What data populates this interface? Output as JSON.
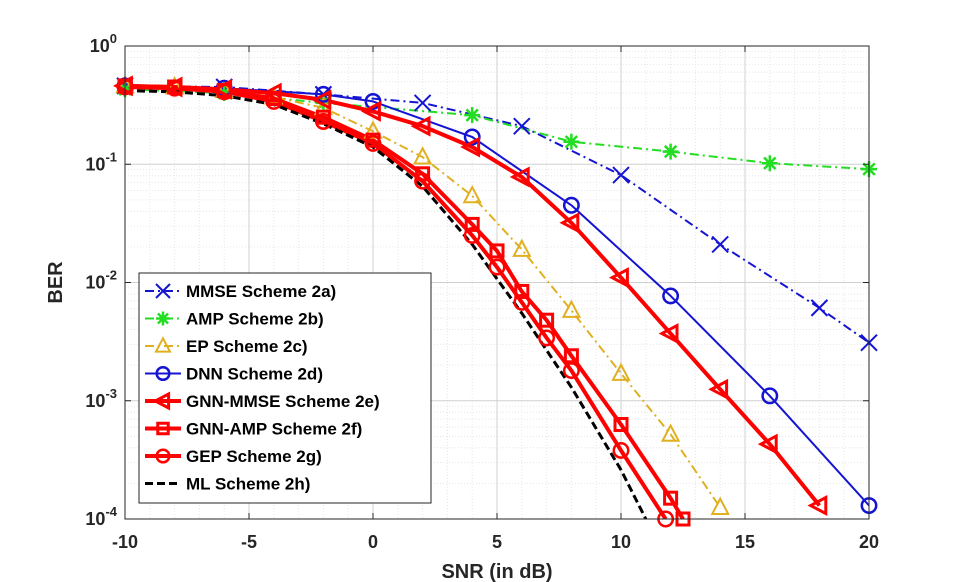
{
  "chart_data": {
    "type": "line",
    "xlabel": "SNR (in dB)",
    "ylabel": "BER",
    "xlim": [
      -10,
      20
    ],
    "ylim": [
      0.0001,
      1
    ],
    "yscale": "log",
    "grid": true,
    "legend_position": "bottom-left",
    "x_ticks": [
      {
        "value": -10,
        "label": "-10"
      },
      {
        "value": -5,
        "label": "-5"
      },
      {
        "value": 0,
        "label": "0"
      },
      {
        "value": 5,
        "label": "5"
      },
      {
        "value": 10,
        "label": "10"
      },
      {
        "value": 15,
        "label": "15"
      },
      {
        "value": 20,
        "label": "20"
      }
    ],
    "y_ticks": [
      {
        "value": 1,
        "base": "10",
        "exp": "0"
      },
      {
        "value": 0.1,
        "base": "10",
        "exp": "-1"
      },
      {
        "value": 0.01,
        "base": "10",
        "exp": "-2"
      },
      {
        "value": 0.001,
        "base": "10",
        "exp": "-3"
      },
      {
        "value": 0.0001,
        "base": "10",
        "exp": "-4"
      }
    ],
    "series": [
      {
        "name": "MMSE Scheme 2a)",
        "color": "#1414d2",
        "dash": "dashdot",
        "marker": "x",
        "width": 2,
        "x": [
          -10,
          -6,
          -2,
          2,
          6,
          10,
          14,
          18,
          20
        ],
        "y": [
          0.46,
          0.45,
          0.39,
          0.33,
          0.21,
          0.081,
          0.021,
          0.0061,
          0.0031
        ]
      },
      {
        "name": "AMP Scheme 2b)",
        "color": "#22dd22",
        "dash": "dashdot",
        "marker": "asterisk",
        "width": 2,
        "x": [
          -10,
          -6,
          -2,
          4,
          8,
          12,
          16,
          20
        ],
        "y": [
          0.43,
          0.4,
          0.33,
          0.26,
          0.155,
          0.128,
          0.102,
          0.091
        ]
      },
      {
        "name": "EP Scheme 2c)",
        "color": "#e0b020",
        "dash": "dashdot",
        "marker": "triangle",
        "width": 2,
        "x": [
          -10,
          -8,
          -6,
          -4,
          -2,
          0,
          2,
          4,
          6,
          8,
          10,
          12,
          14
        ],
        "y": [
          0.46,
          0.45,
          0.42,
          0.37,
          0.3,
          0.19,
          0.115,
          0.054,
          0.019,
          0.0058,
          0.0017,
          0.00052,
          0.000125
        ]
      },
      {
        "name": "DNN Scheme 2d)",
        "color": "#1414d2",
        "dash": "solid",
        "marker": "circle",
        "width": 2,
        "x": [
          -10,
          -6,
          -2,
          0,
          4,
          8,
          12,
          16,
          20
        ],
        "y": [
          0.46,
          0.44,
          0.39,
          0.34,
          0.17,
          0.045,
          0.0077,
          0.0011,
          0.00013
        ]
      },
      {
        "name": "GNN-MMSE Scheme 2e)",
        "color": "#ff0000",
        "dash": "solid",
        "marker": "triangle-left",
        "width": 4,
        "x": [
          -10,
          -8,
          -6,
          -4,
          -2,
          0,
          2,
          4,
          6,
          8,
          10,
          12,
          14,
          16,
          18
        ],
        "y": [
          0.46,
          0.45,
          0.43,
          0.4,
          0.35,
          0.28,
          0.21,
          0.14,
          0.078,
          0.032,
          0.011,
          0.0037,
          0.00125,
          0.00043,
          0.00013
        ]
      },
      {
        "name": "GNN-AMP Scheme 2f)",
        "color": "#ff0000",
        "dash": "solid",
        "marker": "square",
        "width": 4,
        "x": [
          -10,
          -8,
          -6,
          -4,
          -2,
          0,
          2,
          4,
          5,
          6,
          7,
          8,
          10,
          12,
          12.5
        ],
        "y": [
          0.46,
          0.45,
          0.42,
          0.36,
          0.25,
          0.16,
          0.083,
          0.031,
          0.0185,
          0.0084,
          0.0048,
          0.0024,
          0.00063,
          0.00015,
          0.0001
        ]
      },
      {
        "name": "GEP Scheme 2g)",
        "color": "#ff0000",
        "dash": "solid",
        "marker": "circle",
        "width": 4,
        "x": [
          -10,
          -8,
          -6,
          -4,
          -2,
          0,
          2,
          4,
          5,
          6,
          7,
          8,
          10,
          11.8
        ],
        "y": [
          0.45,
          0.44,
          0.41,
          0.34,
          0.23,
          0.15,
          0.072,
          0.025,
          0.0135,
          0.0068,
          0.0034,
          0.0018,
          0.00038,
          0.0001
        ]
      },
      {
        "name": "ML Scheme 2h)",
        "color": "#000000",
        "dash": "dash",
        "marker": "none",
        "width": 3,
        "x": [
          -10,
          -8,
          -6,
          -4,
          -2,
          0,
          2,
          4,
          6,
          8,
          10,
          11
        ],
        "y": [
          0.42,
          0.41,
          0.38,
          0.32,
          0.22,
          0.14,
          0.065,
          0.021,
          0.0055,
          0.0013,
          0.00026,
          0.0001
        ]
      }
    ]
  }
}
